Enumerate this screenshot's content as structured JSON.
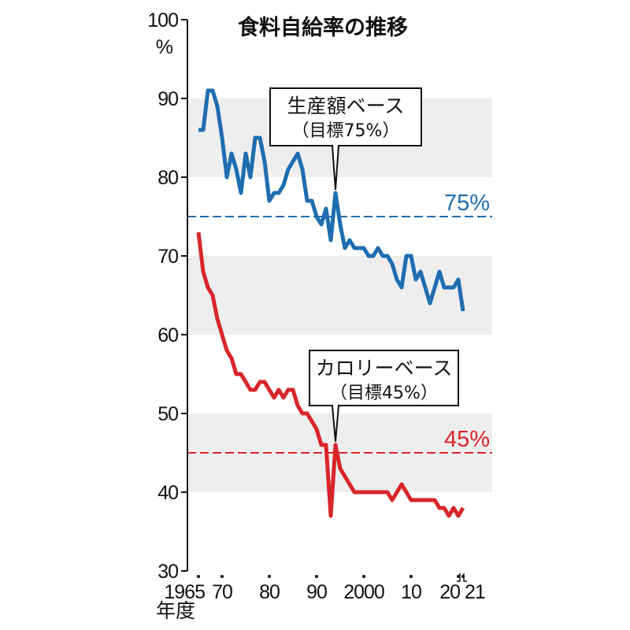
{
  "chart_data": {
    "type": "line",
    "title": "食料自給率の推移",
    "ylabel_unit": "%",
    "xlabel": "年度",
    "ylim": [
      30,
      100
    ],
    "xlim": [
      1965,
      2021
    ],
    "y_ticks": [
      "100",
      "90",
      "80",
      "70",
      "60",
      "50",
      "40",
      "30"
    ],
    "x_ticks": [
      {
        "year": 1965,
        "label": "1965"
      },
      {
        "year": 1970,
        "label": "70"
      },
      {
        "year": 1980,
        "label": "80"
      },
      {
        "year": 1990,
        "label": "90"
      },
      {
        "year": 2000,
        "label": "2000"
      },
      {
        "year": 2010,
        "label": "10"
      },
      {
        "year": 2020,
        "label": "20"
      },
      {
        "year": 2021,
        "label": "21"
      }
    ],
    "grid": "alternating gray bands 40-50, 60-70, 80-90",
    "x": [
      1965,
      1966,
      1967,
      1968,
      1969,
      1970,
      1971,
      1972,
      1973,
      1974,
      1975,
      1976,
      1977,
      1978,
      1979,
      1980,
      1981,
      1982,
      1983,
      1984,
      1985,
      1986,
      1987,
      1988,
      1989,
      1990,
      1991,
      1992,
      1993,
      1994,
      1995,
      1996,
      1997,
      1998,
      1999,
      2000,
      2001,
      2002,
      2003,
      2004,
      2005,
      2006,
      2007,
      2008,
      2009,
      2010,
      2011,
      2012,
      2013,
      2014,
      2015,
      2016,
      2017,
      2018,
      2019,
      2020,
      2021
    ],
    "series": [
      {
        "name": "生産額ベース",
        "color": "#1f6db0",
        "values": [
          86,
          86,
          91,
          91,
          89,
          85,
          80,
          83,
          81,
          78,
          83,
          80,
          85,
          85,
          82,
          77,
          78,
          78,
          79,
          81,
          82,
          83,
          81,
          77,
          77,
          75,
          74,
          76,
          72,
          78,
          74,
          71,
          72,
          71,
          71,
          71,
          70,
          70,
          71,
          70,
          70,
          69,
          67,
          66,
          70,
          70,
          67,
          68,
          66,
          64,
          66,
          68,
          66,
          66,
          66,
          67,
          63
        ]
      },
      {
        "name": "カロリーベース",
        "color": "#d8262b",
        "values": [
          73,
          68,
          66,
          65,
          62,
          60,
          58,
          57,
          55,
          55,
          54,
          53,
          53,
          54,
          54,
          53,
          52,
          53,
          52,
          53,
          53,
          51,
          50,
          50,
          49,
          48,
          46,
          46,
          37,
          46,
          43,
          42,
          41,
          40,
          40,
          40,
          40,
          40,
          40,
          40,
          40,
          39,
          40,
          41,
          40,
          39,
          39,
          39,
          39,
          39,
          39,
          38,
          38,
          37,
          38,
          37,
          38
        ]
      }
    ],
    "targets": [
      {
        "value": 75,
        "label": "75%",
        "color": "#1f6db0"
      },
      {
        "value": 45,
        "label": "45%",
        "color": "#d8262b"
      }
    ],
    "annotations": [
      {
        "series": "生産額ベース",
        "year": 1994,
        "line1": "生産額ベース",
        "line2": "（目標75%）"
      },
      {
        "series": "カロリーベース",
        "year": 1994,
        "line1": "カロリーベース",
        "line2": "（目標45%）"
      }
    ]
  }
}
